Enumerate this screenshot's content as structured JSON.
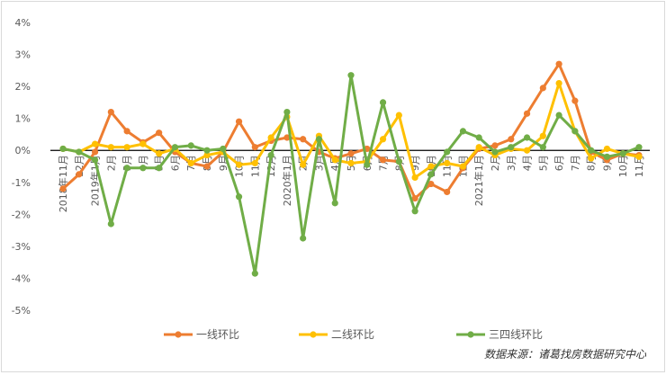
{
  "chart_data": {
    "type": "line",
    "categories": [
      "2018年11月",
      "12月",
      "2019年1月",
      "2月",
      "3月",
      "4月",
      "5月",
      "6月",
      "7月",
      "8月",
      "9月",
      "10月",
      "11月",
      "12月",
      "2020年1月",
      "2月",
      "3月",
      "4月",
      "5月",
      "6月",
      "7月",
      "8月",
      "9月",
      "10月",
      "11月",
      "12月",
      "2021年1月",
      "2月",
      "3月",
      "4月",
      "5月",
      "6月",
      "7月",
      "8月",
      "9月",
      "10月",
      "11月"
    ],
    "y_tick_labels": [
      "4%",
      "3%",
      "2%",
      "1%",
      "0%",
      "-1%",
      "-2%",
      "-3%",
      "-4%",
      "-5%"
    ],
    "ylim": [
      -5,
      4
    ],
    "y_unit": "%",
    "series": [
      {
        "name": "一线环比",
        "color": "#ed7d31",
        "values": [
          -1.2,
          -0.75,
          -0.05,
          1.2,
          0.6,
          0.25,
          0.55,
          -0.05,
          -0.4,
          -0.5,
          -0.05,
          0.9,
          0.1,
          0.3,
          0.4,
          0.35,
          -0.05,
          -0.25,
          -0.1,
          0.05,
          -0.3,
          -0.35,
          -1.5,
          -1.05,
          -1.3,
          -0.55,
          0.05,
          0.15,
          0.35,
          1.15,
          1.95,
          2.7,
          1.55,
          -0.05,
          -0.3,
          -0.1,
          -0.15
        ]
      },
      {
        "name": "二线环比",
        "color": "#ffc000",
        "values": [
          0.05,
          -0.05,
          0.2,
          0.1,
          0.1,
          0.2,
          -0.1,
          0.05,
          -0.4,
          -0.15,
          -0.05,
          -0.45,
          -0.4,
          0.4,
          1.05,
          -0.45,
          0.45,
          -0.3,
          -0.4,
          -0.35,
          0.35,
          1.1,
          -0.85,
          -0.5,
          -0.4,
          -0.5,
          0.1,
          -0.15,
          0.05,
          0.0,
          0.45,
          2.1,
          0.6,
          -0.25,
          0.05,
          -0.1,
          -0.2
        ]
      },
      {
        "name": "三四线环比",
        "color": "#70ad47",
        "values": [
          0.05,
          -0.05,
          -0.3,
          -2.3,
          -0.55,
          -0.55,
          -0.55,
          0.1,
          0.15,
          0.0,
          0.05,
          -1.45,
          -3.85,
          -0.15,
          1.2,
          -2.75,
          0.35,
          -1.65,
          2.35,
          -0.45,
          1.5,
          -0.35,
          -1.9,
          -0.75,
          -0.05,
          0.6,
          0.4,
          -0.05,
          0.1,
          0.4,
          0.1,
          1.1,
          0.6,
          0.0,
          -0.2,
          -0.1,
          0.1
        ]
      }
    ],
    "legend_position": "bottom",
    "grid": false,
    "source_note": "数据来源：诸葛找房数据研究中心"
  }
}
